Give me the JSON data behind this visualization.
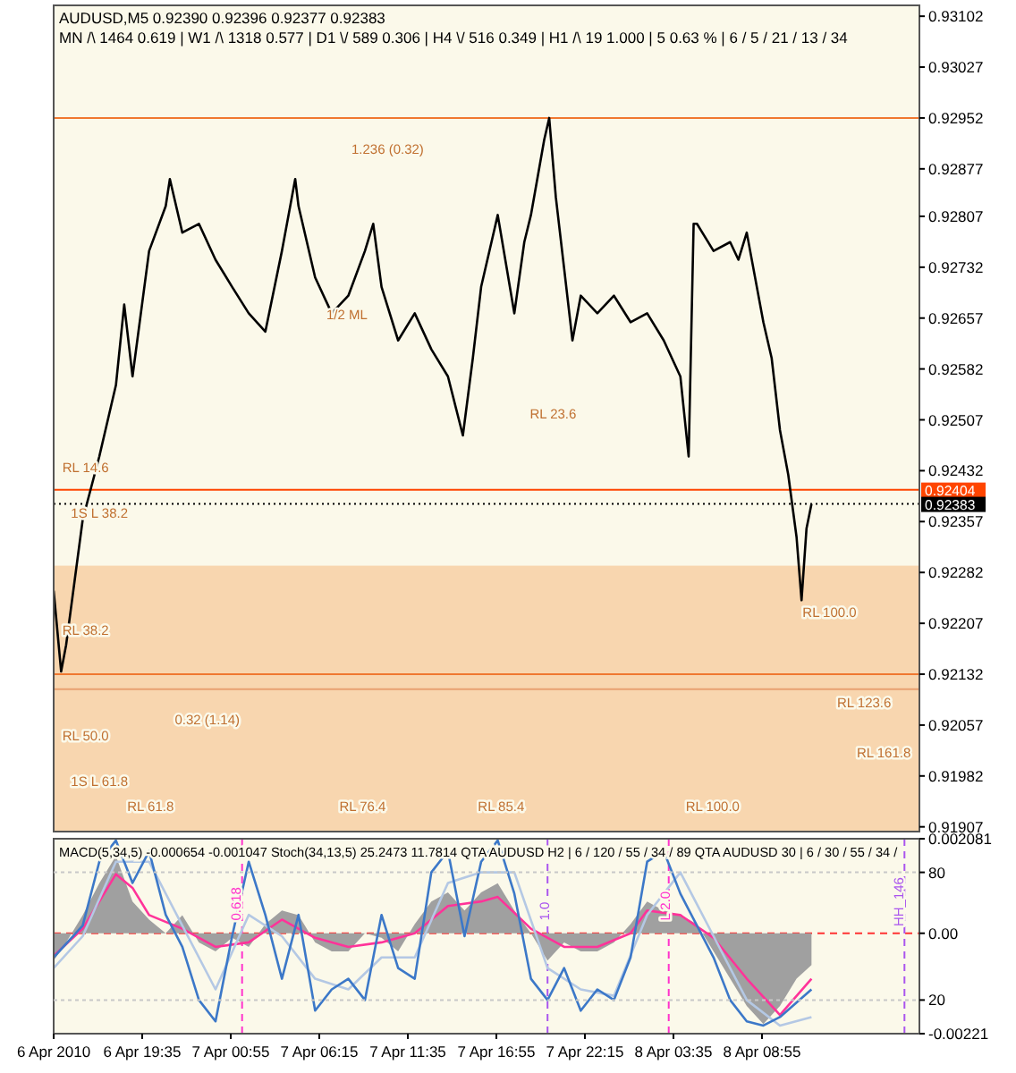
{
  "chart_data": [
    {
      "type": "line",
      "title": "AUDUSD,M5  0.92390 0.92396 0.92377 0.92383",
      "subtitle": "MN /\\ 1464   0.619  |  W1 /\\ 1318   0.577  |  D1 \\/ 589   0.306  |  H4 \\/ 516   0.349  |  H1 /\\ 19   1.000  |  5  0.63 %  |  6 / 5 / 21 / 13 / 34",
      "xlim": [
        "2010-04-06T14:15",
        "2010-04-08T18:24"
      ],
      "ylim": [
        0.919,
        0.93118
      ],
      "yticks": [
        0.93102,
        0.93027,
        0.92952,
        0.92877,
        0.92807,
        0.92732,
        0.92657,
        0.92582,
        0.92507,
        0.92432,
        0.92357,
        0.92282,
        0.92207,
        0.92132,
        0.92057,
        0.91982,
        0.91907
      ],
      "tick_labels": "y",
      "series": [
        {
          "color": "#000000",
          "x": [
            "2010-04-06T14:15",
            "2010-04-06T14:42",
            "2010-04-06T15:00",
            "2010-04-06T16:00",
            "2010-04-06T17:00",
            "2010-04-06T18:00",
            "2010-04-06T18:30",
            "2010-04-06T19:00",
            "2010-04-06T20:00",
            "2010-04-06T21:00",
            "2010-04-06T21:15",
            "2010-04-06T22:00",
            "2010-04-06T23:00",
            "2010-04-07T00:00",
            "2010-04-07T01:00",
            "2010-04-07T02:00",
            "2010-04-07T03:00",
            "2010-04-07T04:00",
            "2010-04-07T04:48",
            "2010-04-07T05:00",
            "2010-04-07T06:00",
            "2010-04-07T07:00",
            "2010-04-07T08:00",
            "2010-04-07T09:00",
            "2010-04-07T09:30",
            "2010-04-07T10:00",
            "2010-04-07T11:00",
            "2010-04-07T12:00",
            "2010-04-07T13:00",
            "2010-04-07T14:00",
            "2010-04-07T14:54",
            "2010-04-07T15:30",
            "2010-04-07T16:00",
            "2010-04-07T17:00",
            "2010-04-07T18:00",
            "2010-04-07T18:36",
            "2010-04-07T19:00",
            "2010-04-07T19:48",
            "2010-04-07T20:06",
            "2010-04-07T20:30",
            "2010-04-07T21:00",
            "2010-04-07T21:30",
            "2010-04-07T22:00",
            "2010-04-07T23:00",
            "2010-04-08T00:00",
            "2010-04-08T01:00",
            "2010-04-08T02:00",
            "2010-04-08T03:00",
            "2010-04-08T04:00",
            "2010-04-08T04:30",
            "2010-04-08T04:48",
            "2010-04-08T05:00",
            "2010-04-08T06:00",
            "2010-04-08T07:00",
            "2010-04-08T07:30",
            "2010-04-08T08:00",
            "2010-04-08T09:00",
            "2010-04-08T09:30",
            "2010-04-08T10:00",
            "2010-04-08T10:30",
            "2010-04-08T11:00",
            "2010-04-08T11:18",
            "2010-04-08T11:36",
            "2010-04-08T11:54"
          ],
          "values": [
            0.92255,
            0.92136,
            0.92175,
            0.9236,
            0.92453,
            0.92558,
            0.92677,
            0.92571,
            0.92756,
            0.92822,
            0.92862,
            0.92783,
            0.92796,
            0.92743,
            0.92703,
            0.92664,
            0.92637,
            0.92756,
            0.92862,
            0.92822,
            0.92717,
            0.92664,
            0.9269,
            0.92756,
            0.92796,
            0.92703,
            0.92624,
            0.92664,
            0.92611,
            0.92571,
            0.92484,
            0.92598,
            0.92703,
            0.92809,
            0.92664,
            0.92769,
            0.92809,
            0.9292,
            0.92952,
            0.92835,
            0.9273,
            0.92624,
            0.9269,
            0.92664,
            0.9269,
            0.92651,
            0.92664,
            0.92624,
            0.92571,
            0.92453,
            0.92796,
            0.92796,
            0.92756,
            0.92769,
            0.92743,
            0.92783,
            0.92651,
            0.92598,
            0.92492,
            0.92426,
            0.92334,
            0.92241,
            0.92347,
            0.92383
          ]
        }
      ],
      "bands": [
        {
          "axis": "y",
          "from": 0.919,
          "to": 0.92292,
          "color": "#f6c896"
        }
      ],
      "ref_lines": [
        {
          "axis": "y",
          "value": 0.92952,
          "color": "#f07830"
        },
        {
          "axis": "y",
          "value": 0.92404,
          "label": "0.92404",
          "color": "#ff4500"
        },
        {
          "axis": "y",
          "value": 0.92383,
          "label": "0.92383",
          "color": "#000000",
          "line_style": "dotted"
        },
        {
          "axis": "y",
          "value": 0.92132,
          "color": "#f07830"
        },
        {
          "axis": "y",
          "value": 0.9211,
          "color": "#e8a070"
        }
      ],
      "annotations": [
        "1.236 (0.32)",
        "0.32 (1.14)",
        "1/2 ML",
        "RL 14.6",
        "1S L 38.2",
        "RL 38.2",
        "RL 50.0",
        "1S L 61.8",
        "RL 61.8",
        "RL 76.4",
        "RL 85.4",
        "RL 100.0",
        "RL 23.6",
        "RL 100.0",
        "RL 123.6",
        "RL 161.8"
      ]
    },
    {
      "type": "line",
      "title": "MACD(5,34,5) -0.000654 -0.001047  Stoch(34,13,5) 25.2473 11.7814  QTA AUDUSD H2 | 6 / 120 / 55 / 34 / 89  QTA AUDUSD 30 | 6 / 30 / 55 / 34 /",
      "xlim": [
        "2010-04-06T14:15",
        "2010-04-08T18:24"
      ],
      "xticks": [
        {
          "value": "2010-04-06T14:15",
          "label": "6 Apr 2010"
        },
        {
          "value": "2010-04-06T19:35",
          "label": "6 Apr 19:35"
        },
        {
          "value": "2010-04-07T00:55",
          "label": "7 Apr 00:55"
        },
        {
          "value": "2010-04-07T06:15",
          "label": "7 Apr 06:15"
        },
        {
          "value": "2010-04-07T11:35",
          "label": "7 Apr 11:35"
        },
        {
          "value": "2010-04-07T16:55",
          "label": "7 Apr 16:55"
        },
        {
          "value": "2010-04-07T22:15",
          "label": "7 Apr 22:15"
        },
        {
          "value": "2010-04-08T03:35",
          "label": "8 Apr 03:35"
        },
        {
          "value": "2010-04-08T08:55",
          "label": "8 Apr 08:55"
        }
      ],
      "ylim": [
        -0.00221,
        0.002081
      ],
      "yticks": [
        0.002081,
        {
          "value": 0,
          "label": "0.00"
        },
        -0.00221
      ],
      "y2lim": [
        4.2,
        95.8
      ],
      "y2ticks": [
        80,
        20
      ],
      "series": [
        {
          "type": "area",
          "color": "#a0a0a0",
          "x": [
            "2010-04-06T14:15",
            "2010-04-06T15:00",
            "2010-04-06T16:00",
            "2010-04-06T17:00",
            "2010-04-06T18:00",
            "2010-04-06T19:00",
            "2010-04-06T20:00",
            "2010-04-06T21:00",
            "2010-04-06T22:00",
            "2010-04-06T23:00",
            "2010-04-07T00:00",
            "2010-04-07T01:00",
            "2010-04-07T02:00",
            "2010-04-07T03:00",
            "2010-04-07T04:00",
            "2010-04-07T05:00",
            "2010-04-07T06:00",
            "2010-04-07T07:00",
            "2010-04-07T08:00",
            "2010-04-07T09:00",
            "2010-04-07T10:00",
            "2010-04-07T11:00",
            "2010-04-07T12:00",
            "2010-04-07T13:00",
            "2010-04-07T14:00",
            "2010-04-07T15:00",
            "2010-04-07T16:00",
            "2010-04-07T17:00",
            "2010-04-07T18:00",
            "2010-04-07T19:00",
            "2010-04-07T20:00",
            "2010-04-07T21:00",
            "2010-04-07T22:00",
            "2010-04-07T23:00",
            "2010-04-08T00:00",
            "2010-04-08T01:00",
            "2010-04-08T02:00",
            "2010-04-08T03:00",
            "2010-04-08T04:00",
            "2010-04-08T05:00",
            "2010-04-08T06:00",
            "2010-04-08T07:00",
            "2010-04-08T08:00",
            "2010-04-08T09:00",
            "2010-04-08T10:00",
            "2010-04-08T11:00",
            "2010-04-08T11:54"
          ],
          "values": [
            -0.0006,
            -0.0002,
            0.0004,
            0.0011,
            0.0017,
            0.0007,
            0.0003,
            0,
            0.0004,
            -0.0002,
            -0.0004,
            -0.0001,
            -0.0003,
            0.0002,
            0.0005,
            0.0004,
            -0.0002,
            -0.0004,
            -0.0004,
            0,
            -0.0001,
            -0.0004,
            0.0002,
            0.0007,
            0.0009,
            0.0005,
            0.0009,
            0.0011,
            0.0005,
            0,
            -0.0006,
            -0.0002,
            -0.0004,
            -0.0004,
            -0.0002,
            0.0002,
            0.0007,
            0.0005,
            0.0004,
            0.0002,
            -0.0004,
            -0.001,
            -0.0016,
            -0.002,
            -0.0016,
            -0.001,
            -0.0007
          ]
        },
        {
          "color": "#ff3399",
          "x": [
            "2010-04-06T14:15",
            "2010-04-06T16:00",
            "2010-04-06T18:00",
            "2010-04-06T19:00",
            "2010-04-06T20:00",
            "2010-04-06T22:00",
            "2010-04-07T00:00",
            "2010-04-07T02:00",
            "2010-04-07T04:00",
            "2010-04-07T06:00",
            "2010-04-07T08:00",
            "2010-04-07T10:00",
            "2010-04-07T12:00",
            "2010-04-07T14:00",
            "2010-04-07T16:00",
            "2010-04-07T17:00",
            "2010-04-07T19:00",
            "2010-04-07T21:00",
            "2010-04-07T23:00",
            "2010-04-08T01:00",
            "2010-04-08T02:00",
            "2010-04-08T04:00",
            "2010-04-08T06:00",
            "2010-04-08T08:00",
            "2010-04-08T10:00",
            "2010-04-08T11:54"
          ],
          "values": [
            -0.0005,
            0.0001,
            0.0013,
            0.001,
            0.0004,
            0.0001,
            -0.0003,
            -0.0002,
            0.0003,
            -0.0001,
            -0.0003,
            -0.0002,
            0,
            0.0006,
            0.0007,
            0.0008,
            0.0001,
            -0.0003,
            -0.0003,
            0,
            0.0005,
            0.0004,
            -0.0001,
            -0.001,
            -0.0018,
            -0.001
          ]
        },
        {
          "color": "#b4c8e4",
          "axis": "y2",
          "x": [
            "2010-04-06T14:15",
            "2010-04-06T16:00",
            "2010-04-06T18:00",
            "2010-04-06T20:00",
            "2010-04-06T22:00",
            "2010-04-07T00:00",
            "2010-04-07T02:00",
            "2010-04-07T04:00",
            "2010-04-07T06:00",
            "2010-04-07T08:00",
            "2010-04-07T10:00",
            "2010-04-07T12:00",
            "2010-04-07T14:00",
            "2010-04-07T16:00",
            "2010-04-07T18:00",
            "2010-04-07T20:00",
            "2010-04-07T22:00",
            "2010-04-08T00:00",
            "2010-04-08T02:00",
            "2010-04-08T04:00",
            "2010-04-08T06:00",
            "2010-04-08T08:00",
            "2010-04-08T10:00",
            "2010-04-08T11:54"
          ],
          "values": [
            35,
            50,
            85,
            85,
            55,
            25,
            60,
            50,
            30,
            25,
            40,
            40,
            75,
            80,
            80,
            35,
            25,
            22,
            60,
            80,
            50,
            20,
            8,
            12
          ]
        },
        {
          "color": "#3c78c8",
          "axis": "y2",
          "x": [
            "2010-04-06T14:15",
            "2010-04-06T16:00",
            "2010-04-06T17:00",
            "2010-04-06T18:00",
            "2010-04-06T19:00",
            "2010-04-06T20:00",
            "2010-04-06T21:00",
            "2010-04-06T22:00",
            "2010-04-06T23:00",
            "2010-04-07T00:00",
            "2010-04-07T01:00",
            "2010-04-07T02:00",
            "2010-04-07T03:00",
            "2010-04-07T04:00",
            "2010-04-07T05:00",
            "2010-04-07T06:00",
            "2010-04-07T07:00",
            "2010-04-07T08:00",
            "2010-04-07T09:00",
            "2010-04-07T10:00",
            "2010-04-07T11:00",
            "2010-04-07T12:00",
            "2010-04-07T13:00",
            "2010-04-07T14:00",
            "2010-04-07T15:00",
            "2010-04-07T16:00",
            "2010-04-07T17:00",
            "2010-04-07T18:00",
            "2010-04-07T19:00",
            "2010-04-07T20:00",
            "2010-04-07T21:00",
            "2010-04-07T22:00",
            "2010-04-07T23:00",
            "2010-04-08T00:00",
            "2010-04-08T01:00",
            "2010-04-08T02:00",
            "2010-04-08T03:00",
            "2010-04-08T04:00",
            "2010-04-08T05:00",
            "2010-04-08T06:00",
            "2010-04-08T07:00",
            "2010-04-08T08:00",
            "2010-04-08T09:00",
            "2010-04-08T10:00",
            "2010-04-08T11:54"
          ],
          "values": [
            40,
            55,
            85,
            95,
            75,
            90,
            60,
            45,
            20,
            10,
            50,
            85,
            60,
            30,
            60,
            15,
            25,
            30,
            20,
            60,
            35,
            30,
            80,
            90,
            50,
            85,
            95,
            70,
            30,
            20,
            35,
            15,
            25,
            20,
            40,
            85,
            90,
            70,
            55,
            40,
            20,
            10,
            8,
            12,
            25
          ]
        }
      ],
      "ref_lines": [
        {
          "axis": "y",
          "value": 0,
          "color": "#ff3333",
          "line_style": "dashed"
        },
        {
          "axis": "x",
          "value": "2010-04-07T01:36",
          "color": "#ff33cc",
          "line_style": "dashed"
        },
        {
          "axis": "x",
          "value": "2010-04-07T20:00",
          "color": "#aa55ee",
          "line_style": "dashed"
        },
        {
          "axis": "x",
          "value": "2010-04-08T03:18",
          "color": "#ff33cc",
          "line_style": "dashed"
        },
        {
          "axis": "x",
          "value": "2010-04-08T17:30",
          "color": "#aa55ee",
          "line_style": "dashed"
        }
      ],
      "annotations": [
        "0.618",
        "1.0",
        "L 2.0",
        "HH_146"
      ]
    }
  ]
}
